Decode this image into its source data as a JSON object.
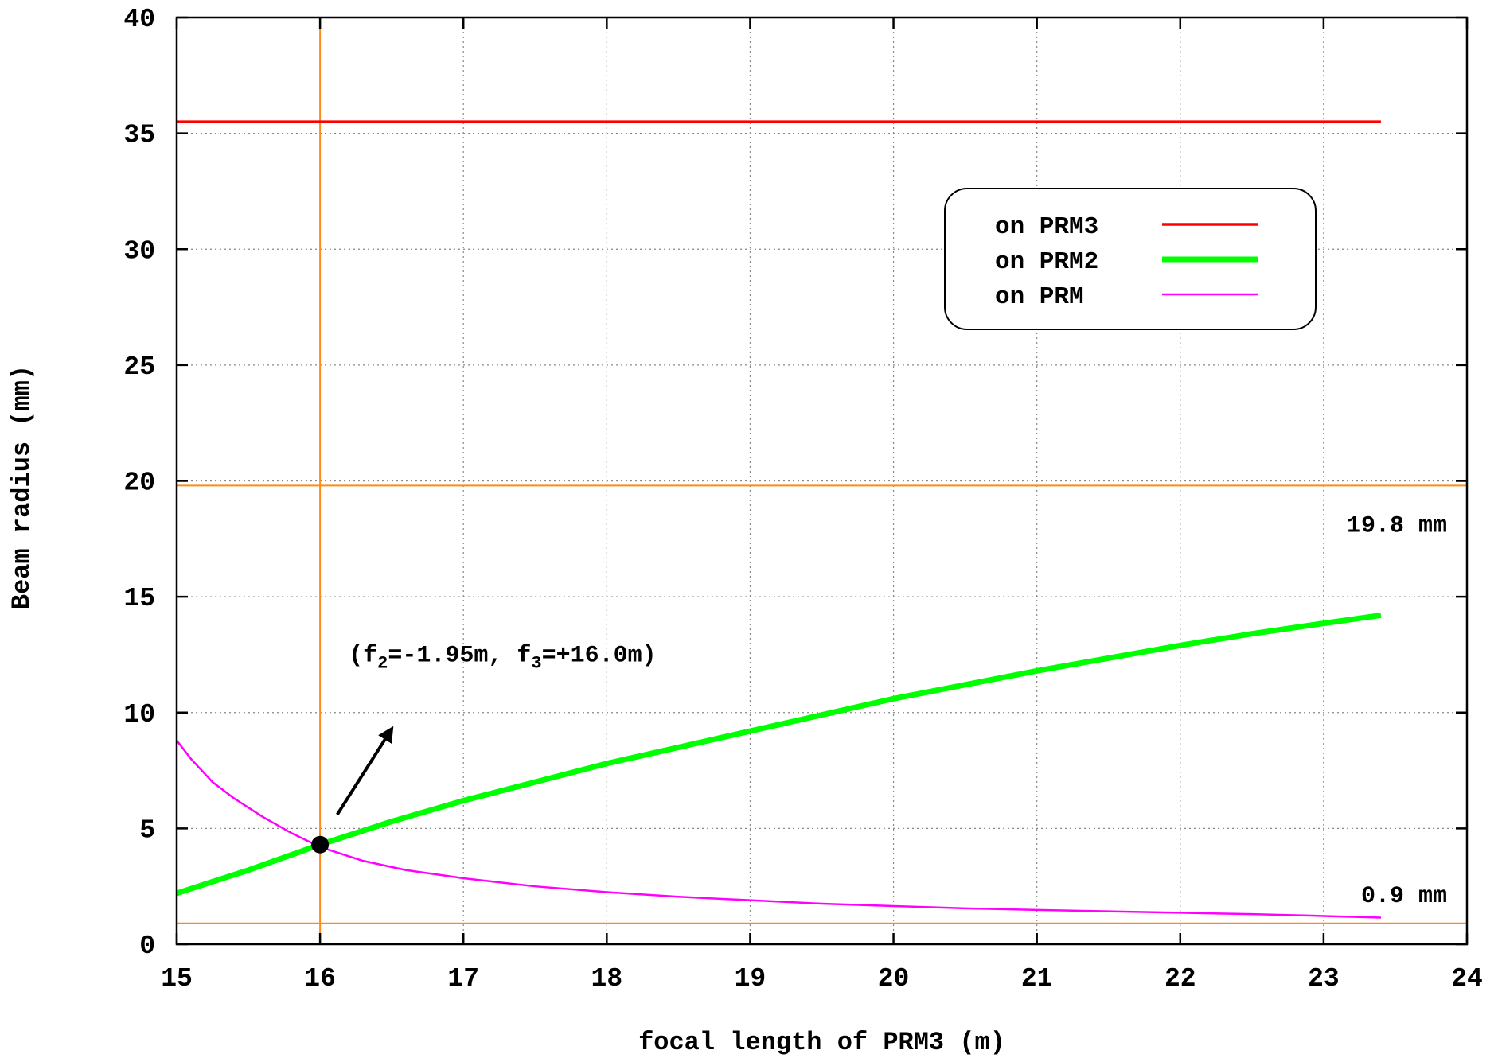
{
  "chart_data": {
    "type": "line",
    "title": "",
    "xlabel": "focal length of PRM3 (m)",
    "ylabel": "Beam radius (mm)",
    "xlim": [
      15,
      24
    ],
    "ylim": [
      0,
      40
    ],
    "xticks": [
      15,
      16,
      17,
      18,
      19,
      20,
      21,
      22,
      23,
      24
    ],
    "yticks": [
      0,
      5,
      10,
      15,
      20,
      25,
      30,
      35,
      40
    ],
    "grid": true,
    "legend_position": "top-right",
    "series": [
      {
        "name": "on PRM3",
        "color": "#ff0000",
        "x": [
          15,
          15.5,
          16,
          16.5,
          17,
          17.5,
          18,
          18.5,
          19,
          19.5,
          20,
          20.5,
          21,
          21.5,
          22,
          22.5,
          23,
          23.4
        ],
        "y": [
          35.5,
          35.5,
          35.5,
          35.5,
          35.5,
          35.5,
          35.5,
          35.5,
          35.5,
          35.5,
          35.5,
          35.5,
          35.5,
          35.5,
          35.5,
          35.5,
          35.5,
          35.5
        ]
      },
      {
        "name": "on PRM2",
        "color": "#00ff00",
        "x": [
          15,
          15.5,
          16,
          16.5,
          17,
          17.5,
          18,
          18.5,
          19,
          19.5,
          20,
          20.5,
          21,
          21.5,
          22,
          22.5,
          23,
          23.4
        ],
        "y": [
          2.2,
          3.2,
          4.3,
          5.3,
          6.2,
          7.0,
          7.8,
          8.5,
          9.2,
          9.9,
          10.6,
          11.2,
          11.8,
          12.35,
          12.9,
          13.4,
          13.85,
          14.2
        ]
      },
      {
        "name": "on PRM",
        "color": "#ff00ff",
        "x": [
          15,
          15.1,
          15.25,
          15.4,
          15.6,
          15.8,
          16,
          16.3,
          16.6,
          17,
          17.5,
          18,
          18.5,
          19,
          19.5,
          20,
          20.5,
          21,
          21.5,
          22,
          22.5,
          23,
          23.4
        ],
        "y": [
          8.8,
          8.0,
          7.0,
          6.3,
          5.5,
          4.8,
          4.2,
          3.6,
          3.2,
          2.85,
          2.5,
          2.25,
          2.05,
          1.9,
          1.75,
          1.65,
          1.55,
          1.48,
          1.42,
          1.36,
          1.3,
          1.22,
          1.15
        ]
      }
    ],
    "reference_lines": [
      {
        "axis": "y",
        "value": 19.8,
        "label": "19.8 mm",
        "color": "#ff8c1a"
      },
      {
        "axis": "y",
        "value": 0.9,
        "label": "0.9 mm",
        "color": "#ff8c1a"
      },
      {
        "axis": "x",
        "value": 16,
        "label": "",
        "color": "#ff8c1a"
      }
    ],
    "marker": {
      "x": 16,
      "y": 4.3
    },
    "annotation": {
      "parts": [
        "(f",
        "2",
        "=-1.95m, f",
        "3",
        "=+16.0m)"
      ],
      "x": 16.2,
      "y": 12.2,
      "arrow_from": [
        16.12,
        5.6
      ],
      "arrow_to": [
        16.5,
        9.3
      ]
    }
  }
}
